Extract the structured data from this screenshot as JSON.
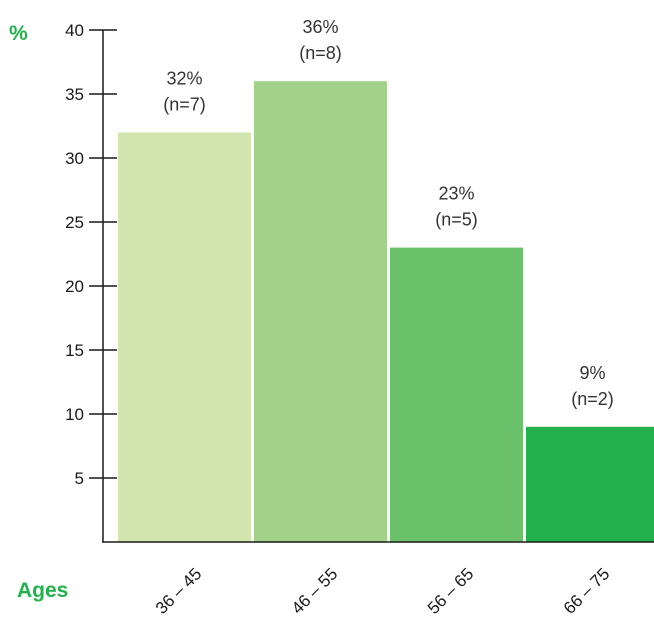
{
  "chart_data": {
    "type": "bar",
    "ylabel": "%",
    "xlabel": "Ages",
    "categories": [
      "36 – 45",
      "46 – 55",
      "56 – 65",
      "66 – 75"
    ],
    "values": [
      32,
      36,
      23,
      9
    ],
    "data_labels": [
      {
        "pct": "32%",
        "n": "(n=7)"
      },
      {
        "pct": "36%",
        "n": "(n=8)"
      },
      {
        "pct": "23%",
        "n": "(n=5)"
      },
      {
        "pct": "9%",
        "n": "(n=2)"
      }
    ],
    "yticks": [
      5,
      10,
      15,
      20,
      25,
      30,
      35,
      40
    ],
    "ylim": [
      0,
      40
    ],
    "grid": false,
    "legend": "none",
    "colors": {
      "bars": [
        "#d0e6ae",
        "#a2d28a",
        "#6cc26a",
        "#22b14c"
      ],
      "axis_title": "#22b14c",
      "axis": "#1a1a1a"
    }
  }
}
